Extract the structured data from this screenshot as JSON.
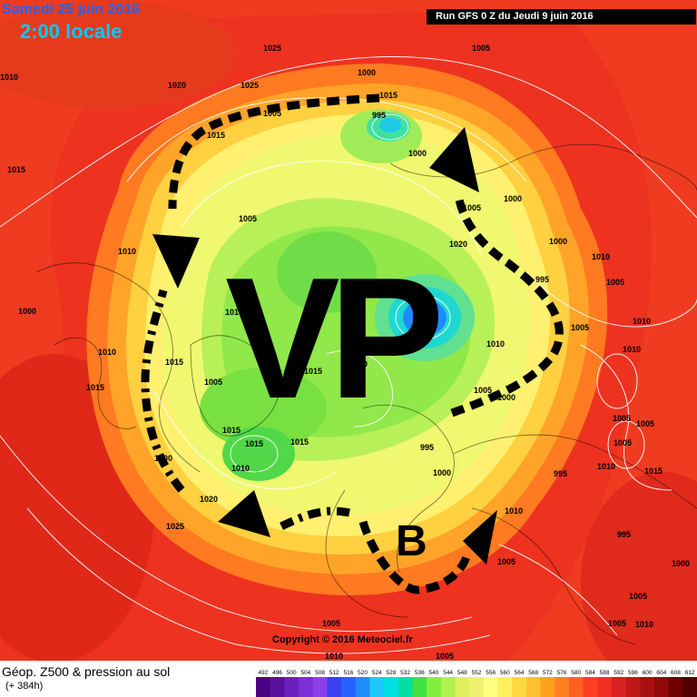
{
  "header": {
    "date": "Samedi 25 juin 2016",
    "time": "2:00 locale",
    "run": "Run GFS 0 Z du Jeudi 9 juin 2016"
  },
  "map": {
    "vortex_label": "VP",
    "low_label": "B",
    "isobar_labels": [
      "1010",
      "1025",
      "1005",
      "1020",
      "1025",
      "1000",
      "1015",
      "995",
      "1015",
      "1000",
      "1015",
      "1005",
      "1005",
      "1020",
      "1005",
      "1000",
      "1000",
      "995",
      "1000",
      "1010",
      "1005",
      "1010",
      "1010",
      "1005",
      "1010",
      "1000",
      "1010",
      "1010",
      "1015",
      "1015",
      "1010",
      "1020",
      "1015",
      "1015",
      "1005",
      "1015",
      "1015",
      "1010",
      "1000",
      "995",
      "1005",
      "1000",
      "1005",
      "995",
      "1005",
      "1010",
      "1000",
      "1005",
      "1020",
      "1025",
      "1010",
      "1005",
      "1015",
      "1005",
      "1000",
      "1005",
      "1010",
      "1005",
      "1005",
      "1010",
      "995"
    ]
  },
  "footer": {
    "copyright": "Copyright © 2016 Meteociel.fr",
    "title": "Géop. Z500 & pression au sol",
    "subtitle": "(+ 384h)"
  },
  "legend": {
    "values": [
      "492",
      "496",
      "500",
      "504",
      "508",
      "512",
      "516",
      "520",
      "524",
      "528",
      "532",
      "536",
      "540",
      "544",
      "548",
      "552",
      "556",
      "560",
      "564",
      "568",
      "572",
      "576",
      "580",
      "584",
      "588",
      "592",
      "596",
      "600",
      "604",
      "608",
      "612"
    ],
    "colors": [
      "#4b0082",
      "#5a10a0",
      "#6a1fbe",
      "#7b2fd6",
      "#8a3fe8",
      "#3a3ff0",
      "#2860ff",
      "#1e8cff",
      "#1ec8ff",
      "#00e0e0",
      "#00e0a0",
      "#40e040",
      "#80f040",
      "#b0f050",
      "#e0f060",
      "#f0f070",
      "#ffff80",
      "#fff060",
      "#ffd840",
      "#ffc030",
      "#ffa020",
      "#ff8020",
      "#ff6020",
      "#ff4020",
      "#f03020",
      "#d82020",
      "#c01818",
      "#a81010",
      "#900808",
      "#700000",
      "#500000"
    ]
  },
  "colors": {
    "arrow": "#000000",
    "isobar": "#ffffff"
  }
}
